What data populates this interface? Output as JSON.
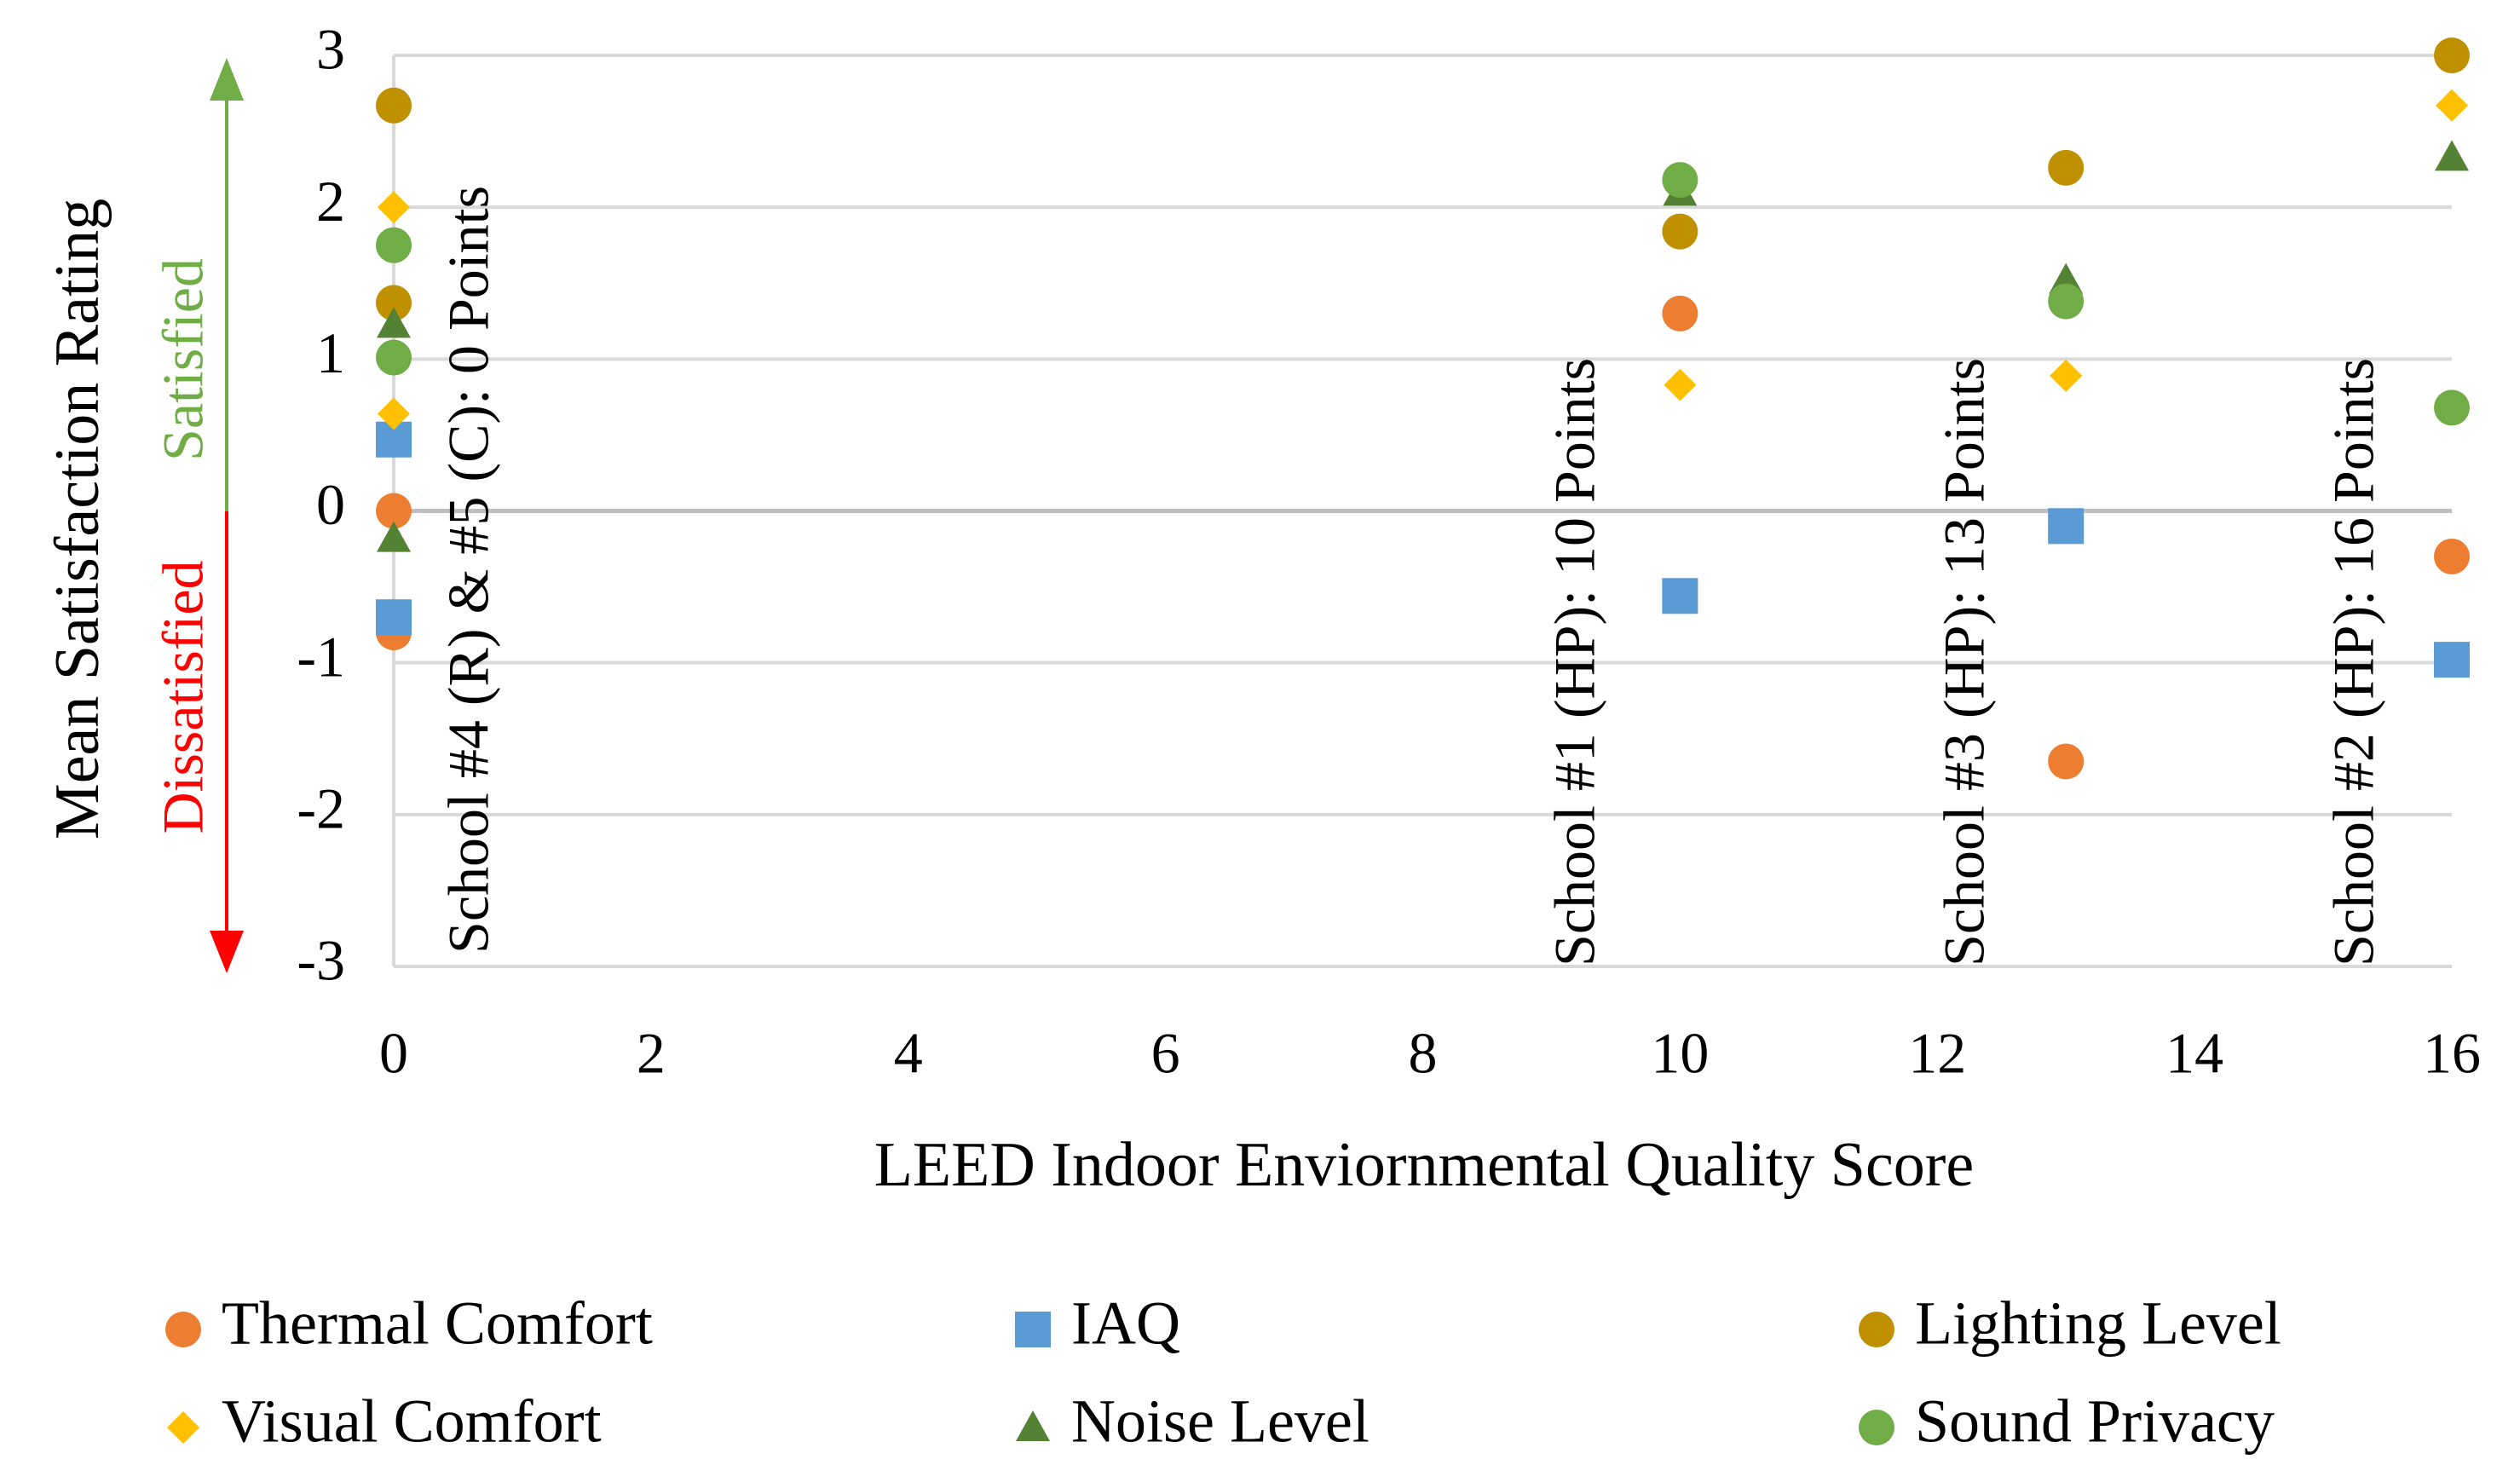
{
  "chart_data": {
    "type": "scatter",
    "x_label": "LEED Indoor Enviornmental  Quality Score",
    "y_label": "Mean Satisfaction Rating",
    "satisfied_label": "Satisfied",
    "dissatisfied_label": "Dissatisfied",
    "annotations": [
      {
        "text": "School #4 (R) & #5 (C): 0 Points",
        "x": 0
      },
      {
        "text": "School #1 (HP): 10 Points",
        "x": 10
      },
      {
        "text": "School #3 (HP): 13 Points",
        "x": 13
      },
      {
        "text": "School #2 (HP): 16 Points",
        "x": 16
      }
    ],
    "x": [
      0,
      0,
      10,
      13,
      16
    ],
    "xlim": [
      0,
      16
    ],
    "xticks": [
      0,
      2,
      4,
      6,
      8,
      10,
      12,
      14,
      16
    ],
    "ylim": [
      -3,
      3
    ],
    "yticks": [
      -3,
      -2,
      -1,
      0,
      1,
      2,
      3
    ],
    "grid": true,
    "series": [
      {
        "name": "Thermal Comfort",
        "color": "#ed7d31",
        "marker": "circle",
        "values": [
          0,
          -0.8,
          1.3,
          -1.65,
          -0.3
        ]
      },
      {
        "name": "IAQ",
        "color": "#5b9bd5",
        "marker": "square",
        "values": [
          0.47,
          -0.7,
          -0.56,
          -0.1,
          -0.98
        ]
      },
      {
        "name": "Lighting Level",
        "color": "#bf9000",
        "marker": "circle",
        "values": [
          2.67,
          1.37,
          1.84,
          2.26,
          3
        ]
      },
      {
        "name": "Visual Comfort",
        "color": "#ffc000",
        "marker": "diamond",
        "values": [
          2,
          0.64,
          0.83,
          0.89,
          2.67
        ]
      },
      {
        "name": "Noise Level",
        "color": "#548235",
        "marker": "triangle",
        "values": [
          1.23,
          -0.18,
          2.1,
          1.52,
          2.33
        ]
      },
      {
        "name": "Sound Privacy",
        "color": "#70ad47",
        "marker": "circle",
        "values": [
          1.75,
          1.01,
          2.18,
          1.38,
          0.68
        ]
      }
    ]
  }
}
